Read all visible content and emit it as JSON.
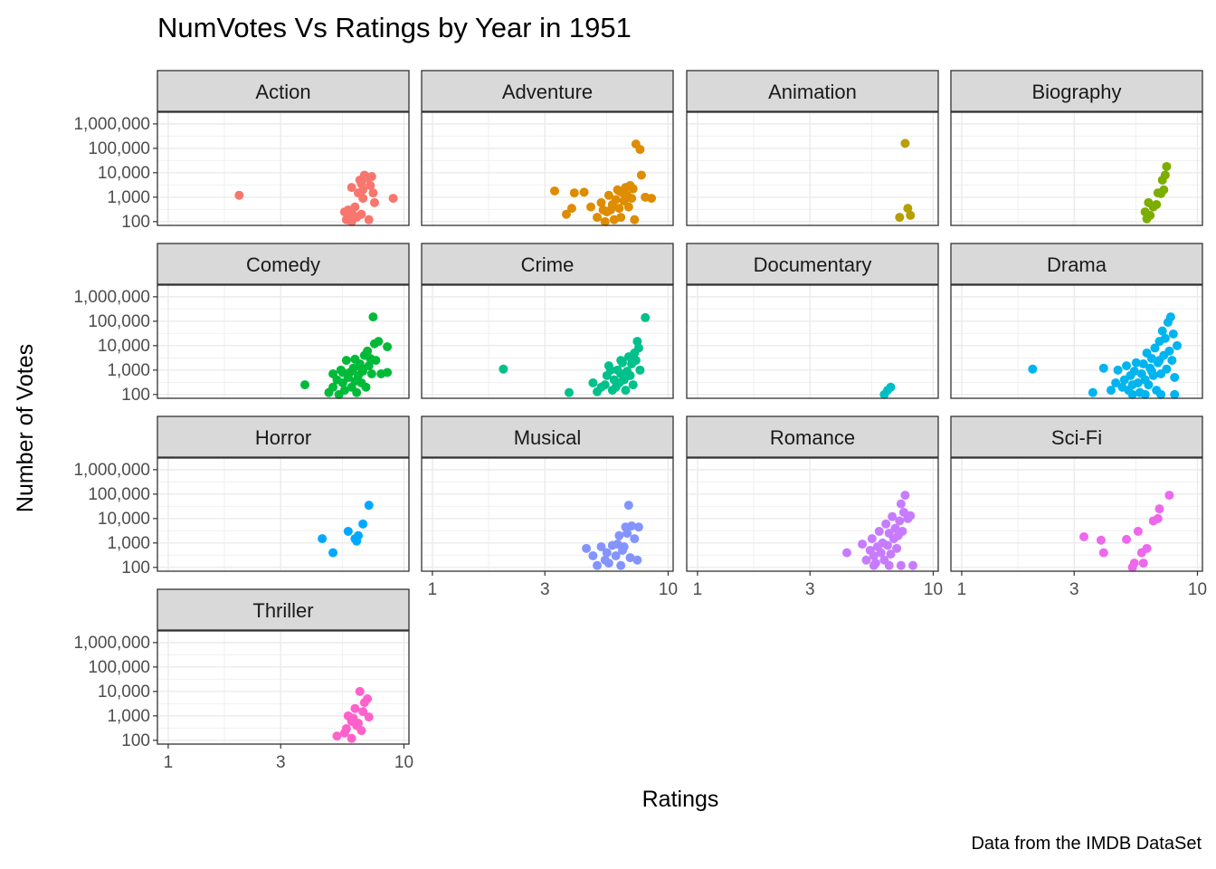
{
  "chart_data": {
    "type": "scatter",
    "title": "NumVotes Vs Ratings by Year in 1951",
    "xlabel": "Ratings",
    "ylabel": "Number of Votes",
    "caption": "Data from the IMDB DataSet",
    "x_scale": "log10",
    "y_scale": "log10",
    "xlim": [
      0.9,
      10.5
    ],
    "ylim": [
      70,
      3000000
    ],
    "x_ticks": [
      1,
      3,
      10
    ],
    "x_tick_labels": [
      "1",
      "3",
      "10"
    ],
    "y_ticks": [
      100,
      1000,
      10000,
      100000,
      1000000
    ],
    "y_tick_labels": [
      "100",
      "1,000",
      "10,000",
      "100,000",
      "1,000,000"
    ],
    "grid": true,
    "legend": "none",
    "panels": [
      {
        "name": "Action",
        "color": "#F8766D",
        "points": [
          [
            2.0,
            1200
          ],
          [
            5.6,
            250
          ],
          [
            5.7,
            120
          ],
          [
            5.8,
            300
          ],
          [
            6.0,
            2500
          ],
          [
            6.1,
            180
          ],
          [
            6.2,
            400
          ],
          [
            6.3,
            150
          ],
          [
            6.4,
            1500
          ],
          [
            6.5,
            5000
          ],
          [
            6.6,
            3500
          ],
          [
            6.7,
            900
          ],
          [
            6.8,
            8000
          ],
          [
            7.0,
            6000
          ],
          [
            7.2,
            3000
          ],
          [
            7.3,
            7000
          ],
          [
            7.4,
            1500
          ],
          [
            7.5,
            600
          ],
          [
            7.1,
            120
          ],
          [
            6.6,
            200
          ],
          [
            9.0,
            900
          ],
          [
            6.0,
            100
          ],
          [
            5.9,
            200
          ],
          [
            6.7,
            2000
          ]
        ]
      },
      {
        "name": "Adventure",
        "color": "#DE8C00",
        "points": [
          [
            3.3,
            1800
          ],
          [
            3.7,
            200
          ],
          [
            3.9,
            350
          ],
          [
            4.0,
            1500
          ],
          [
            4.4,
            1600
          ],
          [
            4.7,
            400
          ],
          [
            5.0,
            150
          ],
          [
            5.2,
            600
          ],
          [
            5.4,
            100
          ],
          [
            5.5,
            250
          ],
          [
            5.6,
            1200
          ],
          [
            5.7,
            300
          ],
          [
            5.8,
            500
          ],
          [
            5.9,
            120
          ],
          [
            6.0,
            800
          ],
          [
            6.1,
            2000
          ],
          [
            6.2,
            350
          ],
          [
            6.3,
            150
          ],
          [
            6.4,
            1500
          ],
          [
            6.5,
            700
          ],
          [
            6.6,
            2500
          ],
          [
            6.7,
            1200
          ],
          [
            6.8,
            400
          ],
          [
            7.0,
            900
          ],
          [
            7.1,
            2200
          ],
          [
            7.2,
            120
          ],
          [
            7.3,
            150000
          ],
          [
            7.6,
            90000
          ],
          [
            7.7,
            8000
          ],
          [
            8.0,
            1000
          ],
          [
            8.5,
            900
          ],
          [
            6.9,
            3000
          ],
          [
            6.2,
            1800
          ],
          [
            5.3,
            300
          ]
        ]
      },
      {
        "name": "Animation",
        "color": "#B79F00",
        "points": [
          [
            7.6,
            160000
          ],
          [
            7.2,
            150
          ],
          [
            7.8,
            350
          ],
          [
            8.0,
            180
          ]
        ]
      },
      {
        "name": "Biography",
        "color": "#7CAE00",
        "points": [
          [
            6.0,
            250
          ],
          [
            6.1,
            130
          ],
          [
            6.3,
            180
          ],
          [
            6.5,
            400
          ],
          [
            6.7,
            500
          ],
          [
            6.8,
            1500
          ],
          [
            7.0,
            1400
          ],
          [
            7.2,
            2000
          ],
          [
            7.1,
            5000
          ],
          [
            7.3,
            8000
          ],
          [
            7.4,
            18000
          ],
          [
            6.2,
            600
          ]
        ]
      },
      {
        "name": "Comedy",
        "color": "#00BA38",
        "points": [
          [
            3.8,
            250
          ],
          [
            4.8,
            120
          ],
          [
            5.0,
            200
          ],
          [
            5.0,
            700
          ],
          [
            5.2,
            400
          ],
          [
            5.3,
            100
          ],
          [
            5.4,
            1000
          ],
          [
            5.5,
            300
          ],
          [
            5.6,
            150
          ],
          [
            5.7,
            2500
          ],
          [
            5.8,
            500
          ],
          [
            5.9,
            800
          ],
          [
            6.0,
            200
          ],
          [
            6.1,
            1200
          ],
          [
            6.2,
            350
          ],
          [
            6.3,
            120
          ],
          [
            6.4,
            600
          ],
          [
            6.5,
            1800
          ],
          [
            6.6,
            300
          ],
          [
            6.7,
            900
          ],
          [
            6.8,
            4000
          ],
          [
            6.9,
            200
          ],
          [
            7.0,
            6000
          ],
          [
            7.1,
            1500
          ],
          [
            7.2,
            3000
          ],
          [
            7.3,
            700
          ],
          [
            7.4,
            150000
          ],
          [
            7.5,
            12000
          ],
          [
            7.6,
            2500
          ],
          [
            7.8,
            15000
          ],
          [
            8.0,
            700
          ],
          [
            8.5,
            9000
          ],
          [
            8.5,
            800
          ],
          [
            6.2,
            2800
          ],
          [
            5.5,
            800
          ],
          [
            6.6,
            1200
          ]
        ]
      },
      {
        "name": "Crime",
        "color": "#00C08B",
        "points": [
          [
            2.0,
            1100
          ],
          [
            3.8,
            120
          ],
          [
            4.8,
            300
          ],
          [
            5.0,
            130
          ],
          [
            5.2,
            200
          ],
          [
            5.4,
            250
          ],
          [
            5.5,
            600
          ],
          [
            5.6,
            1500
          ],
          [
            5.8,
            150
          ],
          [
            5.9,
            400
          ],
          [
            6.0,
            200
          ],
          [
            6.1,
            1000
          ],
          [
            6.2,
            300
          ],
          [
            6.3,
            700
          ],
          [
            6.4,
            2000
          ],
          [
            6.5,
            400
          ],
          [
            6.6,
            150
          ],
          [
            6.7,
            900
          ],
          [
            6.8,
            3500
          ],
          [
            6.9,
            600
          ],
          [
            7.0,
            1800
          ],
          [
            7.1,
            250
          ],
          [
            7.2,
            5000
          ],
          [
            7.3,
            2500
          ],
          [
            7.4,
            15000
          ],
          [
            7.6,
            1000
          ],
          [
            8.0,
            140000
          ],
          [
            7.5,
            8000
          ],
          [
            6.3,
            2500
          ],
          [
            5.7,
            1000
          ]
        ]
      },
      {
        "name": "Documentary",
        "color": "#00BFC4",
        "points": [
          [
            6.2,
            100
          ],
          [
            6.4,
            150
          ],
          [
            6.6,
            200
          ]
        ]
      },
      {
        "name": "Drama",
        "color": "#00B4F0",
        "points": [
          [
            2.0,
            1100
          ],
          [
            3.6,
            120
          ],
          [
            4.0,
            1200
          ],
          [
            4.3,
            150
          ],
          [
            4.5,
            300
          ],
          [
            4.6,
            1000
          ],
          [
            4.8,
            200
          ],
          [
            4.9,
            400
          ],
          [
            5.0,
            1500
          ],
          [
            5.1,
            150
          ],
          [
            5.2,
            600
          ],
          [
            5.3,
            250
          ],
          [
            5.4,
            900
          ],
          [
            5.5,
            2000
          ],
          [
            5.6,
            300
          ],
          [
            5.7,
            120
          ],
          [
            5.8,
            700
          ],
          [
            5.9,
            1800
          ],
          [
            6.0,
            400
          ],
          [
            6.1,
            5000
          ],
          [
            6.2,
            250
          ],
          [
            6.3,
            1200
          ],
          [
            6.4,
            3000
          ],
          [
            6.5,
            600
          ],
          [
            6.6,
            8000
          ],
          [
            6.7,
            150
          ],
          [
            6.8,
            2000
          ],
          [
            6.9,
            15000
          ],
          [
            7.0,
            700
          ],
          [
            7.1,
            40000
          ],
          [
            7.2,
            4000
          ],
          [
            7.3,
            20000
          ],
          [
            7.4,
            1100
          ],
          [
            7.5,
            90000
          ],
          [
            7.6,
            6000
          ],
          [
            7.7,
            150000
          ],
          [
            7.8,
            2500
          ],
          [
            7.9,
            30000
          ],
          [
            8.0,
            500
          ],
          [
            8.2,
            10000
          ],
          [
            8.0,
            100
          ],
          [
            7.0,
            100
          ],
          [
            6.0,
            100
          ],
          [
            5.3,
            100
          ],
          [
            6.9,
            2500
          ],
          [
            6.4,
            900
          ]
        ]
      },
      {
        "name": "Horror",
        "color": "#00A9FF",
        "points": [
          [
            4.5,
            1500
          ],
          [
            5.0,
            400
          ],
          [
            5.8,
            3000
          ],
          [
            6.2,
            1500
          ],
          [
            6.4,
            2000
          ],
          [
            6.7,
            6000
          ],
          [
            7.1,
            35000
          ],
          [
            6.3,
            1200
          ]
        ]
      },
      {
        "name": "Musical",
        "color": "#8494FF",
        "points": [
          [
            4.5,
            600
          ],
          [
            4.8,
            300
          ],
          [
            5.0,
            120
          ],
          [
            5.2,
            700
          ],
          [
            5.4,
            200
          ],
          [
            5.5,
            400
          ],
          [
            5.6,
            150
          ],
          [
            5.8,
            800
          ],
          [
            6.0,
            300
          ],
          [
            6.2,
            2000
          ],
          [
            6.3,
            120
          ],
          [
            6.4,
            500
          ],
          [
            6.5,
            700
          ],
          [
            6.6,
            4500
          ],
          [
            6.7,
            2500
          ],
          [
            6.8,
            35000
          ],
          [
            7.0,
            5000
          ],
          [
            7.2,
            1500
          ],
          [
            7.4,
            200
          ],
          [
            7.5,
            4500
          ],
          [
            6.9,
            250
          ],
          [
            6.1,
            900
          ]
        ]
      },
      {
        "name": "Romance",
        "color": "#C77CFF",
        "points": [
          [
            4.3,
            400
          ],
          [
            5.0,
            900
          ],
          [
            5.2,
            200
          ],
          [
            5.4,
            500
          ],
          [
            5.5,
            1500
          ],
          [
            5.6,
            300
          ],
          [
            5.7,
            150
          ],
          [
            5.8,
            700
          ],
          [
            5.9,
            3000
          ],
          [
            6.0,
            400
          ],
          [
            6.1,
            1000
          ],
          [
            6.2,
            200
          ],
          [
            6.3,
            6000
          ],
          [
            6.4,
            800
          ],
          [
            6.5,
            2500
          ],
          [
            6.6,
            350
          ],
          [
            6.7,
            12000
          ],
          [
            6.8,
            1500
          ],
          [
            6.9,
            4000
          ],
          [
            7.0,
            600
          ],
          [
            7.1,
            2000
          ],
          [
            7.2,
            8000
          ],
          [
            7.3,
            40000
          ],
          [
            7.4,
            3000
          ],
          [
            7.5,
            18000
          ],
          [
            7.6,
            90000
          ],
          [
            7.8,
            10000
          ],
          [
            8.0,
            13000
          ],
          [
            8.2,
            120
          ],
          [
            7.3,
            120
          ],
          [
            6.5,
            120
          ],
          [
            5.6,
            120
          ]
        ]
      },
      {
        "name": "Sci-Fi",
        "color": "#ED68ED",
        "points": [
          [
            3.3,
            1800
          ],
          [
            3.9,
            1300
          ],
          [
            4.0,
            400
          ],
          [
            5.0,
            1400
          ],
          [
            5.3,
            100
          ],
          [
            5.4,
            150
          ],
          [
            5.6,
            3000
          ],
          [
            5.8,
            400
          ],
          [
            5.9,
            150
          ],
          [
            6.1,
            600
          ],
          [
            6.5,
            8000
          ],
          [
            6.8,
            10000
          ],
          [
            6.9,
            25000
          ],
          [
            7.6,
            90000
          ]
        ]
      },
      {
        "name": "Thriller",
        "color": "#FF61CC",
        "points": [
          [
            5.2,
            150
          ],
          [
            5.6,
            200
          ],
          [
            5.7,
            300
          ],
          [
            5.8,
            1000
          ],
          [
            6.0,
            120
          ],
          [
            6.1,
            800
          ],
          [
            6.2,
            2000
          ],
          [
            6.3,
            400
          ],
          [
            6.4,
            500
          ],
          [
            6.5,
            10000
          ],
          [
            6.7,
            1500
          ],
          [
            6.8,
            3500
          ],
          [
            7.0,
            5000
          ],
          [
            7.1,
            900
          ],
          [
            6.6,
            250
          ],
          [
            6.0,
            600
          ]
        ]
      }
    ]
  }
}
